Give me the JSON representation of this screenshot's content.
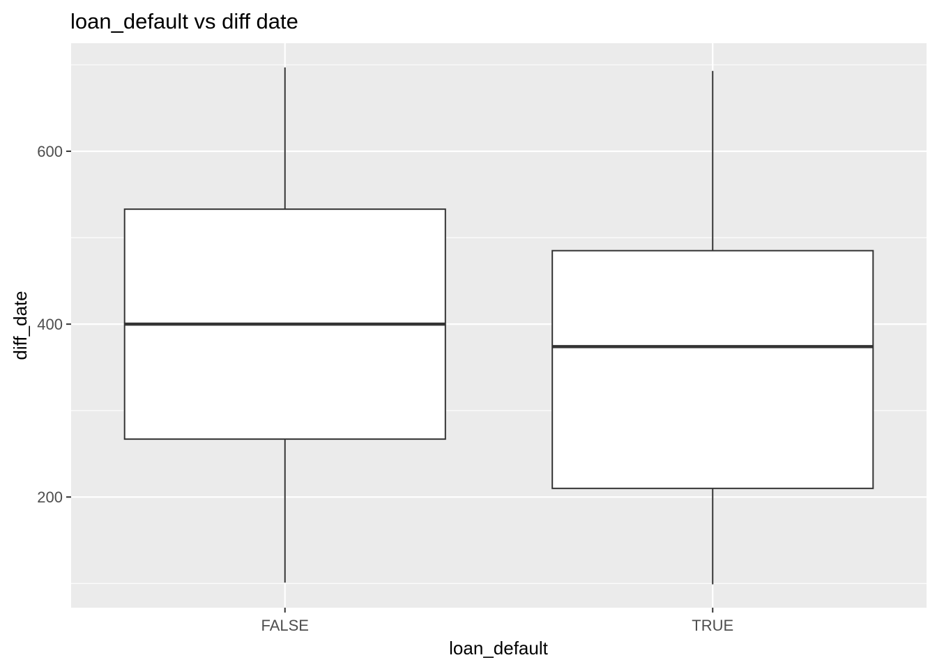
{
  "chart_data": {
    "type": "boxplot",
    "title": "loan_default vs diff date",
    "xlabel": "loan_default",
    "ylabel": "diff_date",
    "categories": [
      "FALSE",
      "TRUE"
    ],
    "ylim": [
      72,
      725
    ],
    "y_major_ticks": [
      200,
      400,
      600
    ],
    "y_minor_ticks": [
      100,
      300,
      500,
      700
    ],
    "grid": true,
    "legend": "none",
    "colors": {
      "panel_background": "#ebebeb",
      "grid": "#ffffff",
      "box_fill": "#ffffff",
      "box_stroke": "#333333",
      "tick_label": "#4d4d4d"
    },
    "boxes": [
      {
        "category": "FALSE",
        "min": 101,
        "q1": 267,
        "median": 400,
        "q3": 533,
        "max": 697
      },
      {
        "category": "TRUE",
        "min": 99,
        "q1": 210,
        "median": 374,
        "q3": 485,
        "max": 693
      }
    ]
  }
}
